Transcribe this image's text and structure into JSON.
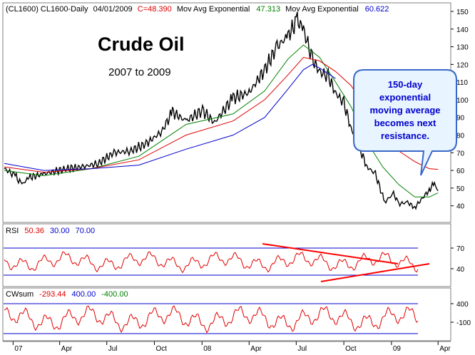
{
  "header": {
    "symbol": "(CL1600) CL1600-Daily",
    "date": "04/01/2009",
    "close": "C=48.390",
    "ma1_label": "Mov Avg Exponential",
    "ma1_value": "47.313",
    "ma2_label": "Mov Avg Exponential",
    "ma2_value": "60.622"
  },
  "titles": {
    "main": "Crude Oil",
    "sub": "2007 to 2009"
  },
  "callout": {
    "lines": [
      "150-day",
      "exponential",
      "moving average",
      "becomes next",
      "resistance."
    ]
  },
  "rsi": {
    "label": "RSI",
    "value": "50.36",
    "lower": "30.00",
    "upper": "70.00",
    "ticks": [
      "70",
      "40"
    ]
  },
  "cwsum": {
    "label": "CWsum",
    "value": "-293.44",
    "upper": "400.00",
    "lower": "-400.00",
    "ticks": [
      "400",
      "-100"
    ]
  },
  "x_axis": {
    "labels": [
      "07",
      "Apr",
      "Jul",
      "Oct",
      "08",
      "Apr",
      "Jul",
      "Oct",
      "09",
      "Apr"
    ]
  },
  "colors": {
    "price": "#000000",
    "ema_short": "#008000",
    "ema_mid": "#e00000",
    "ema_long": "#0000cc",
    "rsi_line": "#e00000",
    "trendline": "#ff0000",
    "callout_fill": "#e8f4ff",
    "callout_text": "#0000cc"
  },
  "chart_data": {
    "type": "line",
    "title": "Crude Oil",
    "subtitle": "2007 to 2009",
    "ylim": [
      33,
      150
    ],
    "y_ticks": [
      40,
      50,
      60,
      70,
      80,
      90,
      100,
      110,
      120,
      130,
      140,
      150
    ],
    "x_ticks": [
      "07",
      "Apr",
      "Jul",
      "Oct",
      "08",
      "Apr",
      "Jul",
      "Oct",
      "09",
      "Apr"
    ],
    "x_tick_dates": [
      "2007-01-01",
      "2007-04-01",
      "2007-07-01",
      "2007-10-01",
      "2008-01-01",
      "2008-04-01",
      "2008-07-01",
      "2008-10-01",
      "2009-01-01",
      "2009-04-01"
    ],
    "x_range": [
      "2006-12-15",
      "2009-04-20"
    ],
    "series": [
      {
        "name": "CL1600-Daily",
        "x": [
          "2006-12-15",
          "2007-01-05",
          "2007-01-18",
          "2007-02-01",
          "2007-03-01",
          "2007-04-15",
          "2007-05-15",
          "2007-06-15",
          "2007-07-15",
          "2007-08-15",
          "2007-09-15",
          "2007-10-15",
          "2007-11-05",
          "2007-12-01",
          "2008-01-02",
          "2008-01-25",
          "2008-03-01",
          "2008-04-01",
          "2008-05-01",
          "2008-05-25",
          "2008-06-15",
          "2008-07-03",
          "2008-07-15",
          "2008-08-01",
          "2008-08-15",
          "2008-09-01",
          "2008-09-15",
          "2008-10-01",
          "2008-10-15",
          "2008-11-01",
          "2008-11-15",
          "2008-12-01",
          "2008-12-19",
          "2009-01-05",
          "2009-01-15",
          "2009-02-01",
          "2009-02-15",
          "2009-03-01",
          "2009-03-15",
          "2009-03-25",
          "2009-04-01"
        ],
        "y": [
          61,
          57,
          52,
          56,
          58,
          61,
          62,
          64,
          70,
          71,
          75,
          82,
          93,
          88,
          94,
          87,
          101,
          104,
          117,
          130,
          136,
          145,
          140,
          123,
          116,
          113,
          104,
          98,
          84,
          72,
          62,
          58,
          42,
          47,
          41,
          42,
          39,
          44,
          49,
          53,
          48.4
        ]
      },
      {
        "name": "Mov Avg Exponential",
        "x": [
          "2006-12-15",
          "2007-03-01",
          "2007-06-01",
          "2007-09-01",
          "2007-12-01",
          "2008-03-01",
          "2008-05-01",
          "2008-06-15",
          "2008-07-15",
          "2008-08-15",
          "2008-09-15",
          "2008-10-15",
          "2008-11-15",
          "2008-12-15",
          "2009-01-15",
          "2009-02-15",
          "2009-03-15",
          "2009-04-01"
        ],
        "y": [
          60,
          57,
          61,
          68,
          86,
          92,
          105,
          123,
          131,
          124,
          110,
          96,
          76,
          62,
          52,
          45,
          45,
          47.3
        ]
      },
      {
        "name": "Mov Avg Exponential",
        "x": [
          "2006-12-15",
          "2007-03-01",
          "2007-06-01",
          "2007-09-01",
          "2007-12-01",
          "2008-03-01",
          "2008-05-01",
          "2008-06-15",
          "2008-07-15",
          "2008-08-15",
          "2008-09-15",
          "2008-10-15",
          "2008-11-15",
          "2008-12-15",
          "2009-01-15",
          "2009-02-15",
          "2009-03-15",
          "2009-04-01"
        ],
        "y": [
          62,
          59,
          61,
          66,
          80,
          88,
          100,
          114,
          124,
          122,
          116,
          108,
          94,
          82,
          71,
          65,
          61,
          60.6
        ]
      },
      {
        "name": "",
        "x": [
          "2006-12-15",
          "2007-03-01",
          "2007-06-01",
          "2007-09-01",
          "2007-12-01",
          "2008-03-01",
          "2008-05-01",
          "2008-06-15",
          "2008-07-15",
          "2008-08-01",
          "2008-08-15",
          "2008-09-15"
        ],
        "y": [
          64,
          60,
          61,
          63,
          72,
          80,
          90,
          106,
          117,
          120,
          118,
          112
        ]
      }
    ]
  }
}
